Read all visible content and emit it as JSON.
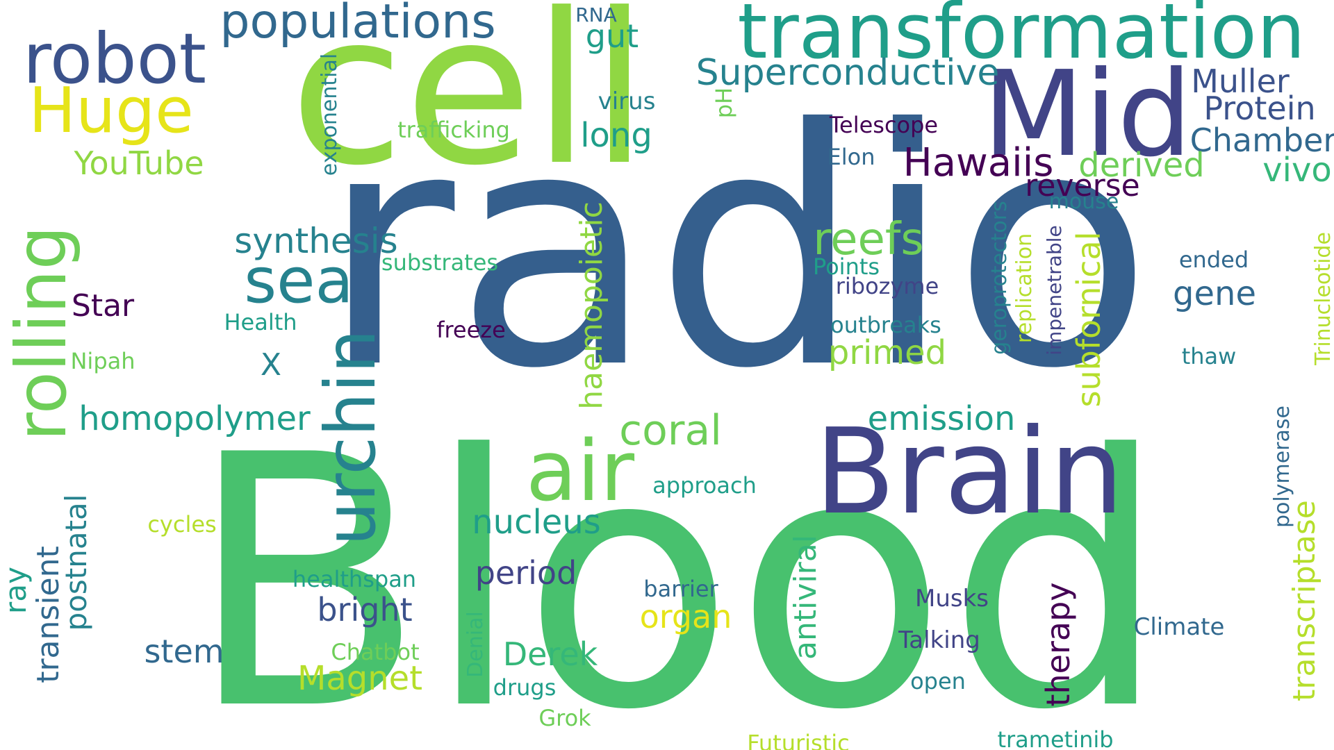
{
  "palette": {
    "background": "#ffffff",
    "dark_purple": "#440154",
    "indigo": "#3b528b",
    "navy": "#355f8d",
    "slate": "#414487",
    "teal_blue": "#31688e",
    "teal": "#26828e",
    "green_teal": "#1f9e89",
    "sea_green": "#35b779",
    "green": "#48c16e",
    "lime": "#6ece58",
    "light_lime": "#90d743",
    "yellow_green": "#b5de2b",
    "yellow": "#e6e419"
  },
  "words": [
    {
      "text": "radio",
      "color": "#355f8d"
    },
    {
      "text": "Blood",
      "color": "#48c16e"
    },
    {
      "text": "cell",
      "color": "#90d743"
    },
    {
      "text": "Mid",
      "color": "#414487"
    },
    {
      "text": "Brain",
      "color": "#414487"
    },
    {
      "text": "transformation",
      "color": "#1f9e89"
    },
    {
      "text": "robot",
      "color": "#3b528b"
    },
    {
      "text": "populations",
      "color": "#31688e"
    },
    {
      "text": "air",
      "color": "#6ece58"
    },
    {
      "text": "urchin",
      "color": "#26828e"
    },
    {
      "text": "rolling",
      "color": "#6ece58"
    },
    {
      "text": "sea",
      "color": "#26828e"
    },
    {
      "text": "Huge",
      "color": "#e6e419"
    },
    {
      "text": "Superconductive",
      "color": "#26828e"
    },
    {
      "text": "reefs",
      "color": "#6ece58"
    },
    {
      "text": "Hawaiis",
      "color": "#440154"
    },
    {
      "text": "coral",
      "color": "#6ece58"
    },
    {
      "text": "synthesis",
      "color": "#26828e"
    },
    {
      "text": "homopolymer",
      "color": "#1f9e89"
    },
    {
      "text": "Muller",
      "color": "#3b528b"
    },
    {
      "text": "Protein",
      "color": "#3b528b"
    },
    {
      "text": "Chamber",
      "color": "#31688e"
    },
    {
      "text": "derived",
      "color": "#6ece58"
    },
    {
      "text": "vivo",
      "color": "#35b779"
    },
    {
      "text": "reverse",
      "color": "#440154"
    },
    {
      "text": "long",
      "color": "#1f9e89"
    },
    {
      "text": "gut",
      "color": "#1f9e89"
    },
    {
      "text": "YouTube",
      "color": "#90d743"
    },
    {
      "text": "emission",
      "color": "#1f9e89"
    },
    {
      "text": "primed",
      "color": "#90d743"
    },
    {
      "text": "subfornical",
      "color": "#b5de2b"
    },
    {
      "text": "haemopoietic",
      "color": "#90d743"
    },
    {
      "text": "therapy",
      "color": "#440154"
    },
    {
      "text": "antiviral",
      "color": "#35b779"
    },
    {
      "text": "transcriptase",
      "color": "#b5de2b"
    },
    {
      "text": "nucleus",
      "color": "#1f9e89"
    },
    {
      "text": "period",
      "color": "#414487"
    },
    {
      "text": "bright",
      "color": "#3b528b"
    },
    {
      "text": "organ",
      "color": "#e6e419"
    },
    {
      "text": "Derek",
      "color": "#35b779"
    },
    {
      "text": "Magnet",
      "color": "#b5de2b"
    },
    {
      "text": "stem",
      "color": "#31688e"
    },
    {
      "text": "Star",
      "color": "#440154"
    },
    {
      "text": "gene",
      "color": "#31688e"
    },
    {
      "text": "transient",
      "color": "#31688e"
    },
    {
      "text": "postnatal",
      "color": "#26828e"
    },
    {
      "text": "ray",
      "color": "#1f9e89"
    },
    {
      "text": "exponential",
      "color": "#26828e"
    },
    {
      "text": "trafficking",
      "color": "#6ece58"
    },
    {
      "text": "virus",
      "color": "#26828e"
    },
    {
      "text": "pH",
      "color": "#6ece58"
    },
    {
      "text": "Telescope",
      "color": "#440154"
    },
    {
      "text": "Elon",
      "color": "#31688e"
    },
    {
      "text": "mouse",
      "color": "#26828e"
    },
    {
      "text": "RNA",
      "color": "#31688e"
    },
    {
      "text": "substrates",
      "color": "#35b779"
    },
    {
      "text": "Points",
      "color": "#1f9e89"
    },
    {
      "text": "ribozyme",
      "color": "#414487"
    },
    {
      "text": "outbreaks",
      "color": "#26828e"
    },
    {
      "text": "geroprotectors",
      "color": "#26828e"
    },
    {
      "text": "replication",
      "color": "#b5de2b"
    },
    {
      "text": "impenetrable",
      "color": "#414487"
    },
    {
      "text": "ended",
      "color": "#31688e"
    },
    {
      "text": "thaw",
      "color": "#26828e"
    },
    {
      "text": "Trinucleotide",
      "color": "#b5de2b"
    },
    {
      "text": "polymerase",
      "color": "#31688e"
    },
    {
      "text": "Health",
      "color": "#1f9e89"
    },
    {
      "text": "X",
      "color": "#26828e"
    },
    {
      "text": "freeze",
      "color": "#440154"
    },
    {
      "text": "Nipah",
      "color": "#6ece58"
    },
    {
      "text": "approach",
      "color": "#1f9e89"
    },
    {
      "text": "cycles",
      "color": "#b5de2b"
    },
    {
      "text": "healthspan",
      "color": "#1f9e89"
    },
    {
      "text": "barrier",
      "color": "#31688e"
    },
    {
      "text": "Musks",
      "color": "#414487"
    },
    {
      "text": "Talking",
      "color": "#414487"
    },
    {
      "text": "Climate",
      "color": "#31688e"
    },
    {
      "text": "open",
      "color": "#26828e"
    },
    {
      "text": "Chatbot",
      "color": "#6ece58"
    },
    {
      "text": "Denial",
      "color": "#35b779"
    },
    {
      "text": "drugs",
      "color": "#1f9e89"
    },
    {
      "text": "Grok",
      "color": "#6ece58"
    },
    {
      "text": "Futuristic",
      "color": "#b5de2b"
    },
    {
      "text": "trametinib",
      "color": "#1f9e89"
    }
  ]
}
